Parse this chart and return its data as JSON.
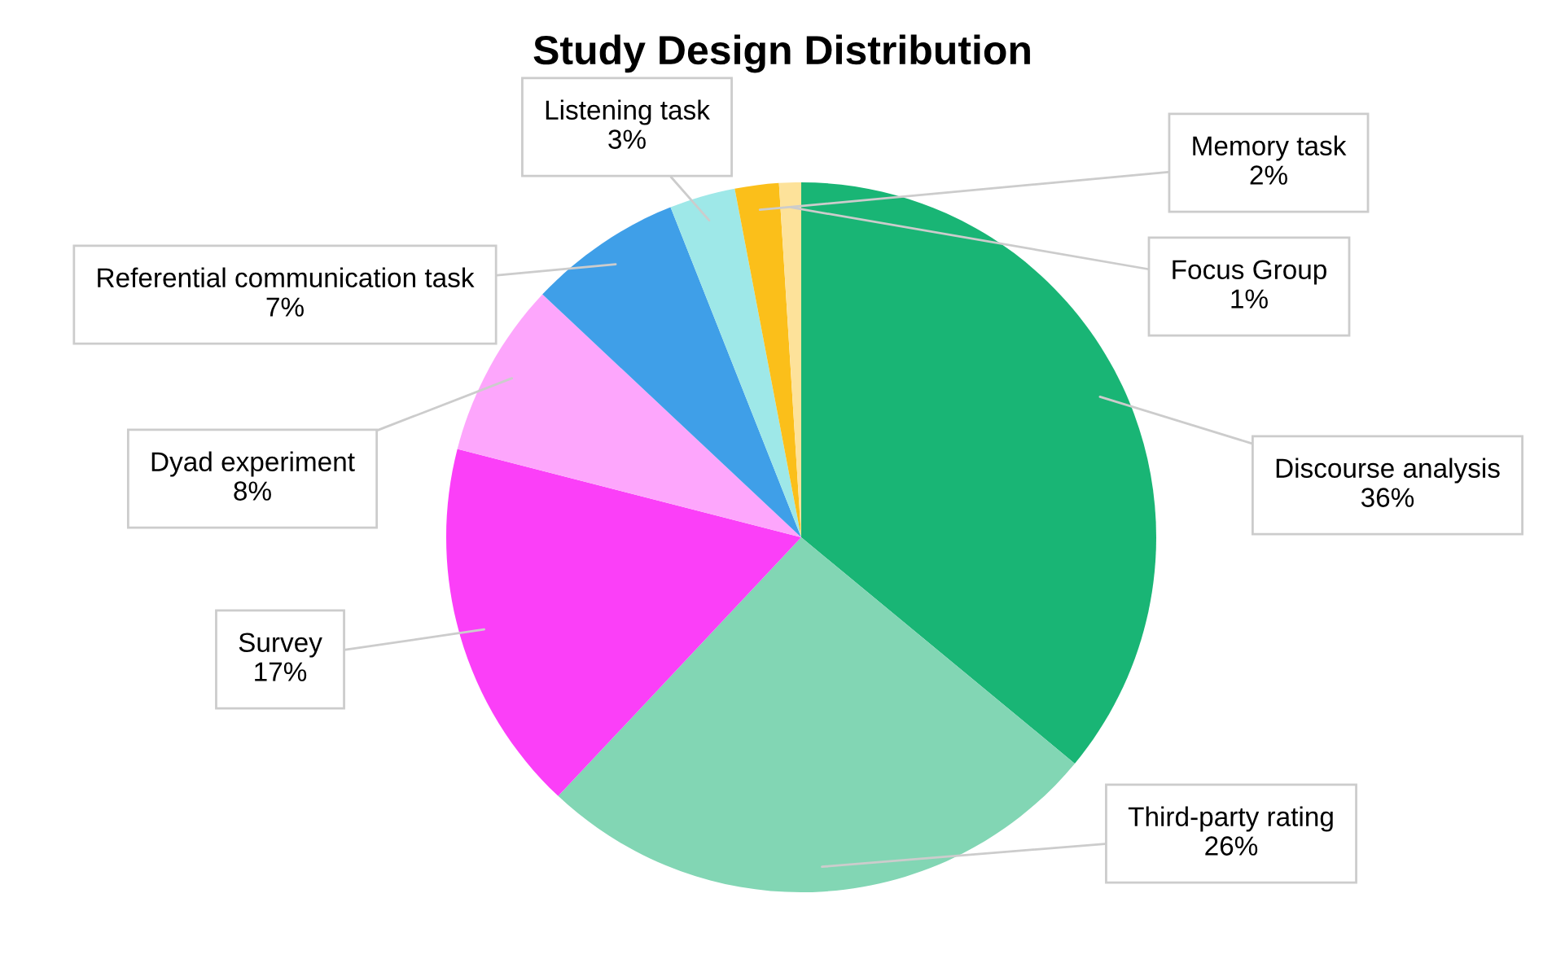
{
  "chart_data": {
    "type": "pie",
    "title": "Study Design Distribution",
    "categories": [
      "Discourse analysis",
      "Third-party rating",
      "Survey",
      "Dyad experiment",
      "Referential communication task",
      "Listening task",
      "Memory task",
      "Focus Group"
    ],
    "values": [
      36,
      26,
      17,
      8,
      7,
      3,
      2,
      1
    ],
    "colors": [
      "#19b575",
      "#82d6b4",
      "#fb3ff8",
      "#fda6fc",
      "#3f9fe8",
      "#9ee8e8",
      "#fbbf1a",
      "#fde29a"
    ],
    "value_labels": [
      "36%",
      "26%",
      "17%",
      "8%",
      "7%",
      "3%",
      "2%",
      "1%"
    ]
  }
}
